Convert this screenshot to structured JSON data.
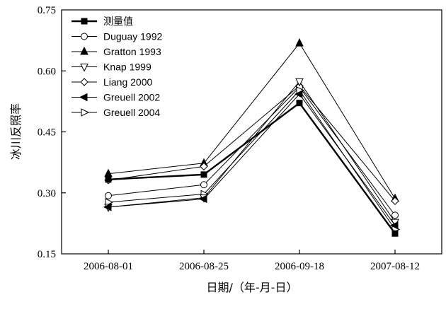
{
  "chart_data": {
    "type": "line",
    "categories": [
      "2006-08-01",
      "2006-08-25",
      "2006-09-18",
      "2007-08-12"
    ],
    "xlabel": "日期/（年-月-日）",
    "ylabel": "冰川反照率",
    "ylim": [
      0.15,
      0.75
    ],
    "yticks": [
      "0.15",
      "0.30",
      "0.45",
      "0.60",
      "0.75"
    ],
    "legend_position": "top-left",
    "grid": false,
    "series": [
      {
        "name": "测量值",
        "marker": "square",
        "filled": true,
        "bold": true,
        "values": [
          0.333,
          0.345,
          0.521,
          0.2
        ]
      },
      {
        "name": "Duguay 1992",
        "marker": "circle",
        "filled": false,
        "values": [
          0.293,
          0.32,
          0.56,
          0.245
        ]
      },
      {
        "name": "Gratton 1993",
        "marker": "triangle-up",
        "filled": true,
        "values": [
          0.347,
          0.373,
          0.668,
          0.286
        ]
      },
      {
        "name": "Knap 1999",
        "marker": "triangle-down",
        "filled": false,
        "values": [
          0.265,
          0.288,
          0.574,
          0.228
        ]
      },
      {
        "name": "Liang 2000",
        "marker": "diamond",
        "filled": false,
        "values": [
          0.331,
          0.365,
          0.563,
          0.28
        ]
      },
      {
        "name": "Greuell 2002",
        "marker": "triangle-left",
        "filled": true,
        "values": [
          0.265,
          0.285,
          0.543,
          0.22
        ]
      },
      {
        "name": "Greuell 2004",
        "marker": "triangle-right",
        "filled": false,
        "values": [
          0.277,
          0.297,
          0.552,
          0.21
        ]
      }
    ]
  }
}
